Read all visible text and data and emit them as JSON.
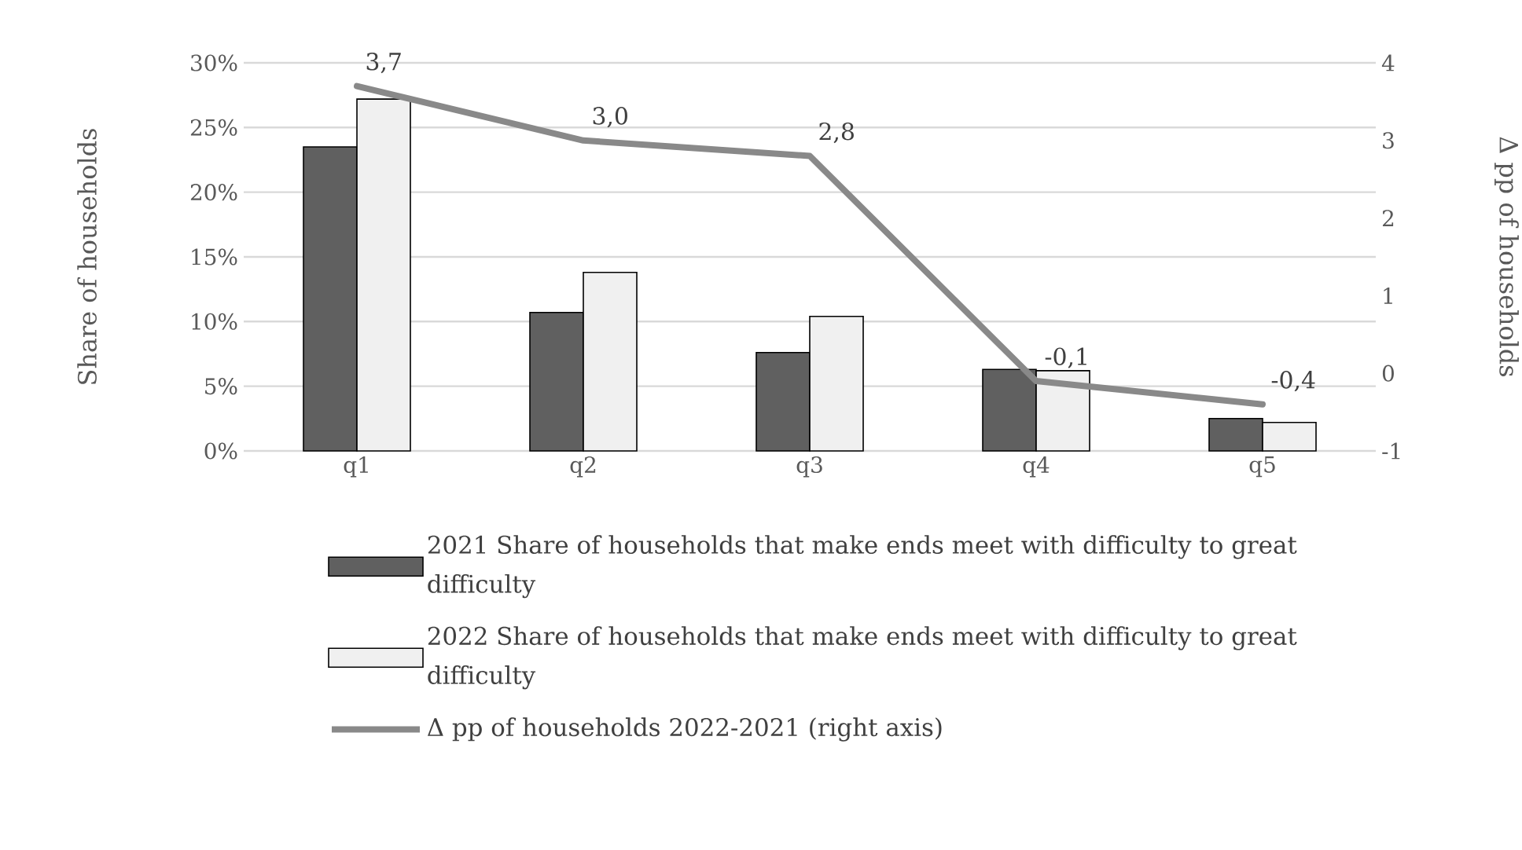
{
  "chart_data": {
    "type": "bar",
    "ylabel": "Share of households",
    "y2label": "Δ pp  of households",
    "categories": [
      "q1",
      "q2",
      "q3",
      "q4",
      "q5"
    ],
    "series": [
      {
        "name": "2021 Share of households that make ends meet with difficulty to great difficulty",
        "color": "#606060",
        "values": [
          23.5,
          10.7,
          7.6,
          6.3,
          2.5
        ]
      },
      {
        "name": "2022 Share of households that make ends meet with difficulty to great difficulty",
        "color": "#f0f0f0",
        "values": [
          27.2,
          13.8,
          10.4,
          6.2,
          2.2
        ]
      },
      {
        "name": "Δ pp of households 2022-2021 (right axis)",
        "type": "line",
        "axis": "y2",
        "color": "#898989",
        "values": [
          3.7,
          3.0,
          2.8,
          -0.1,
          -0.4
        ],
        "value_labels": [
          "3,7",
          "3,0",
          "2,8",
          "-0,1",
          "-0,4"
        ]
      }
    ],
    "ylim": [
      0,
      30
    ],
    "yticks": [
      {
        "value": 0,
        "label": "0%"
      },
      {
        "value": 5,
        "label": "5%"
      },
      {
        "value": 10,
        "label": "10%"
      },
      {
        "value": 15,
        "label": "15%"
      },
      {
        "value": 20,
        "label": "20%"
      },
      {
        "value": 25,
        "label": "25%"
      },
      {
        "value": 30,
        "label": "30%"
      }
    ],
    "y2lim": [
      -1,
      4
    ],
    "y2ticks": [
      -1,
      0,
      1,
      2,
      3,
      4
    ],
    "grid": "y",
    "legend": "bottom"
  }
}
